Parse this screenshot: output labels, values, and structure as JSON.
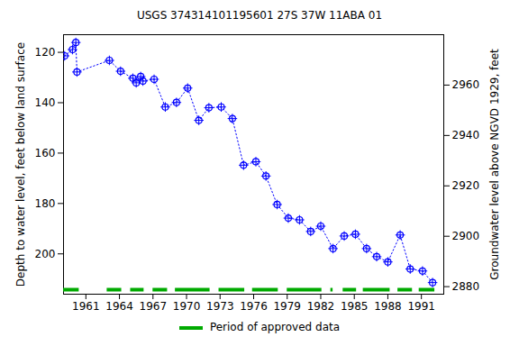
{
  "chart_data": {
    "type": "scatter",
    "title": "USGS 374314101195601 27S 37W 11ABA 01",
    "x_label": null,
    "y_label": "Depth to water level, feet below land surface",
    "y2_label": "Groundwater level above NGVD 1929, feet",
    "x": [
      1959.1,
      1959.8,
      1960.1,
      1960.2,
      1963.1,
      1964.1,
      1965.2,
      1965.5,
      1965.9,
      1966.1,
      1967.1,
      1968.1,
      1969.1,
      1970.1,
      1971.1,
      1972.0,
      1973.1,
      1974.1,
      1975.1,
      1976.2,
      1977.1,
      1978.1,
      1979.1,
      1980.1,
      1981.1,
      1982.0,
      1983.1,
      1984.1,
      1985.1,
      1986.1,
      1987.0,
      1988.0,
      1989.1,
      1990.0,
      1991.1,
      1992.0
    ],
    "series": [
      {
        "name": "Depth to water level",
        "color": "#0000ff",
        "marker": "circle-plus",
        "line_style": "dotted",
        "values": [
          121.4,
          118.9,
          116.1,
          127.8,
          123.2,
          127.5,
          130.3,
          132.1,
          129.6,
          131.4,
          130.7,
          141.7,
          139.9,
          134.2,
          147.0,
          142.0,
          141.7,
          146.3,
          164.8,
          163.4,
          169.1,
          180.4,
          185.8,
          186.5,
          191.1,
          189.0,
          197.9,
          192.9,
          192.2,
          197.9,
          201.1,
          203.2,
          192.5,
          206.0,
          206.8,
          211.4
        ]
      }
    ],
    "approved_periods": {
      "name": "Period of approved data",
      "color": "#00aa00",
      "ranges": [
        [
          1959.0,
          1960.4
        ],
        [
          1962.9,
          1964.2
        ],
        [
          1965.0,
          1966.2
        ],
        [
          1967.0,
          1968.3
        ],
        [
          1969.0,
          1972.1
        ],
        [
          1972.9,
          1975.2
        ],
        [
          1975.9,
          1978.2
        ],
        [
          1979.0,
          1982.1
        ],
        [
          1982.9,
          1983.1
        ],
        [
          1984.0,
          1985.2
        ],
        [
          1985.8,
          1988.2
        ],
        [
          1988.9,
          1990.2
        ],
        [
          1990.8,
          1992.2
        ]
      ]
    },
    "xlim": [
      1959,
      1993
    ],
    "xticks": [
      1961,
      1964,
      1967,
      1970,
      1973,
      1976,
      1979,
      1982,
      1985,
      1988,
      1991
    ],
    "ylim": [
      113,
      216
    ],
    "yticks": [
      120,
      140,
      160,
      180,
      200
    ],
    "y2lim": [
      2877,
      2980
    ],
    "y2ticks": [
      2880,
      2900,
      2920,
      2940,
      2960
    ],
    "grid": false
  }
}
